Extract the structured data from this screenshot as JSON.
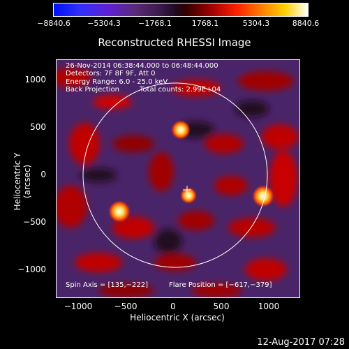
{
  "colorbar": {
    "ticks": [
      "−8840.6",
      "−5304.3",
      "−1768.1",
      "1768.1",
      "5304.3",
      "8840.6"
    ]
  },
  "plot": {
    "title": "Reconstructed RHESSI Image",
    "annotations": {
      "time_range": "26-Nov-2014 06:38:44.000 to 06:48:44.000",
      "detectors": "Detectors: 7F 8F 9F, Att 0",
      "energy": "Energy Range: 6.0 - 25.0 keV",
      "method": "Back Projection",
      "counts": "Total counts: 2.99E+04",
      "spin_axis": "Spin Axis = [135,−222]",
      "flare_position": "Flare Position = [−617,−379]"
    },
    "x_axis": {
      "label": "Heliocentric X (arcsec)",
      "ticks": [
        "−1000",
        "−500",
        "0",
        "500",
        "1000"
      ]
    },
    "y_axis": {
      "label": "Heliocentric Y (arcsec)",
      "ticks": [
        "1000",
        "500",
        "0",
        "−500",
        "−1000"
      ]
    }
  },
  "footer": {
    "timestamp": "12-Aug-2017 07:28"
  }
}
